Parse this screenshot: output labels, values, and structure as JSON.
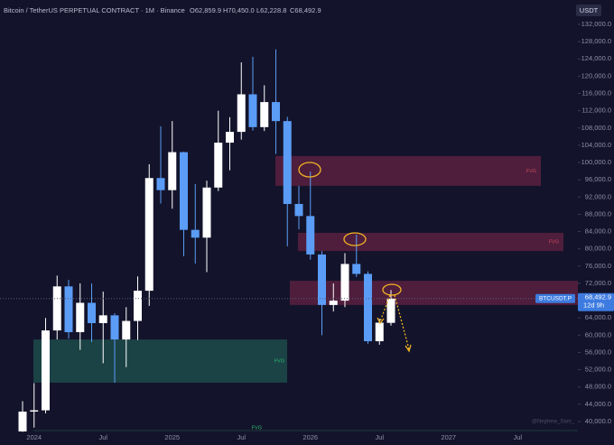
{
  "header": {
    "symbol": "Bitcoin / TetherUS PERPETUAL CONTRACT · 1M · Binance",
    "ohlc": [
      "O62,859.9",
      "H70,450.0",
      "L62,228.8",
      "C68,492.9"
    ],
    "currency": "USDT"
  },
  "watermark": "@Nephew_Sam_",
  "chart_data": {
    "type": "candlestick",
    "categories": [
      null,
      "2024",
      null,
      null,
      null,
      null,
      null,
      "Jul",
      null,
      null,
      null,
      null,
      null,
      "2025",
      null,
      null,
      null,
      null,
      null,
      "Jul",
      null,
      null,
      null,
      null,
      null,
      "2026",
      null,
      null,
      null,
      null,
      null,
      "Jul",
      null,
      null,
      null,
      null,
      null,
      "2027",
      null,
      null,
      null,
      null,
      null,
      "Jul"
    ],
    "open": [
      37700,
      42300,
      42600,
      61100,
      71300,
      60700,
      67500,
      62800,
      64600,
      59000,
      63300,
      70300,
      96400,
      93600,
      102400,
      84400,
      82600,
      94200,
      104600,
      107100,
      115800,
      108200,
      114000,
      109600,
      90400,
      87600,
      78700,
      67000,
      68000,
      76500,
      74200,
      58600,
      62859.9,
      null,
      null,
      null,
      null,
      null,
      null,
      null,
      null,
      null,
      null,
      null
    ],
    "high": [
      44700,
      48900,
      64000,
      73800,
      72800,
      72000,
      72000,
      70100,
      65100,
      66500,
      73600,
      99600,
      108400,
      109600,
      102500,
      95000,
      95800,
      112000,
      110500,
      123200,
      124500,
      117900,
      126200,
      110600,
      94600,
      97900,
      79500,
      72000,
      79000,
      83300,
      74800,
      63800,
      70450,
      null,
      null,
      null,
      null,
      null,
      null,
      null,
      null,
      null,
      null,
      null
    ],
    "low": [
      37600,
      38600,
      41900,
      59000,
      59200,
      56600,
      58400,
      53500,
      49000,
      52600,
      58900,
      66800,
      90500,
      89300,
      78300,
      76600,
      74600,
      93400,
      98200,
      105300,
      107400,
      107300,
      102000,
      80600,
      84500,
      77500,
      60000,
      65500,
      66500,
      73500,
      58000,
      57800,
      62228.8,
      null,
      null,
      null,
      null,
      null,
      null,
      null,
      null,
      null,
      null,
      null
    ],
    "close": [
      42300,
      42600,
      61100,
      71300,
      60700,
      67500,
      62800,
      64600,
      59000,
      63300,
      70300,
      96400,
      93600,
      102400,
      84400,
      82600,
      94200,
      104600,
      107100,
      115800,
      108200,
      114000,
      109600,
      90400,
      87600,
      78700,
      67000,
      68000,
      76500,
      74200,
      58600,
      62900,
      68492.9,
      null,
      null,
      null,
      null,
      null,
      null,
      null,
      null,
      null,
      null,
      null
    ],
    "up_color": "#ffffff",
    "down_color": "#5b9cf6",
    "ylim": [
      40000,
      132000
    ],
    "yticks": [
      {
        "value": 40000,
        "label": "40,000.0"
      },
      {
        "value": 44000,
        "label": "44,000.0"
      },
      {
        "value": 48000,
        "label": "48,000.0"
      },
      {
        "value": 52000,
        "label": "52,000.0"
      },
      {
        "value": 56000,
        "label": "56,000.0"
      },
      {
        "value": 60000,
        "label": "60,000.0"
      },
      {
        "value": 64000,
        "label": "64,000.0"
      },
      {
        "value": 68000,
        "label": "68,000.0"
      },
      {
        "value": 72000,
        "label": "72,000.0"
      },
      {
        "value": 76000,
        "label": "76,000.0"
      },
      {
        "value": 80000,
        "label": "80,000.0"
      },
      {
        "value": 84000,
        "label": "84,000.0"
      },
      {
        "value": 88000,
        "label": "88,000.0"
      },
      {
        "value": 92000,
        "label": "92,000.0"
      },
      {
        "value": 96000,
        "label": "96,000.0"
      },
      {
        "value": 100000,
        "label": "100,000.0"
      },
      {
        "value": 104000,
        "label": "104,000.0"
      },
      {
        "value": 108000,
        "label": "108,000.0"
      },
      {
        "value": 112000,
        "label": "112,000.0"
      },
      {
        "value": 116000,
        "label": "116,000.0"
      },
      {
        "value": 120000,
        "label": "120,000.0"
      },
      {
        "value": 124000,
        "label": "124,000.0"
      },
      {
        "value": 128000,
        "label": "128,000.0"
      },
      {
        "value": 132000,
        "label": "132,000.0"
      }
    ],
    "zones": [
      {
        "label": "FVG",
        "top": 101500,
        "bottom": 94600,
        "color": "#5a2040"
      },
      {
        "label": "FVG",
        "top": 83700,
        "bottom": 79500,
        "color": "#5a2040"
      },
      {
        "top": 72600,
        "bottom": 67000,
        "color": "#5a2040"
      },
      {
        "label": "FVG",
        "top": 59000,
        "bottom": 49000,
        "color": "#1d4a4a"
      }
    ],
    "bottom_label": "FVG",
    "price_label": {
      "symbol": "BTCUSDT.P",
      "value": 68492.9,
      "label": "68,492.9",
      "countdown": "12d 9h"
    }
  }
}
